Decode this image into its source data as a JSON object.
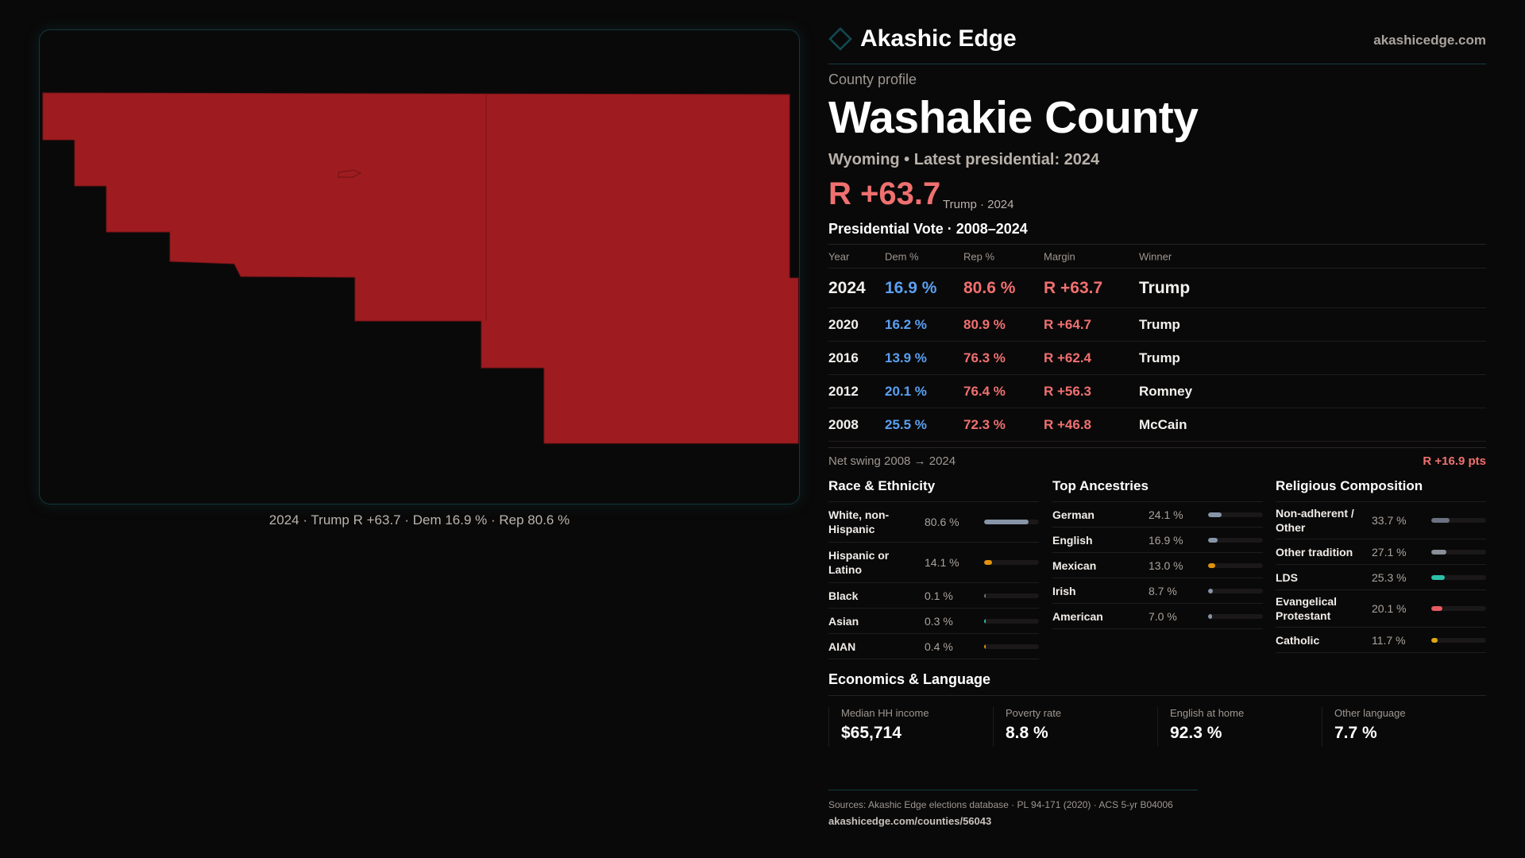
{
  "map": {
    "caption": "2024 · Trump R +63.7 · Dem 16.9 % · Rep 80.6 %",
    "fill_color": "#9e1c20"
  },
  "header": {
    "brand": "Akashic Edge",
    "site": "akashicedge.com"
  },
  "profile": {
    "eyebrow": "County profile",
    "title": "Washakie County",
    "subtitle": "Wyoming • Latest presidential: 2024",
    "margin": "R +63.7",
    "margin_note": "Trump · 2024"
  },
  "vote": {
    "title": "Presidential Vote · 2008–2024",
    "headers": [
      "Year",
      "Dem %",
      "Rep %",
      "Margin",
      "Winner"
    ],
    "rows": [
      {
        "year": "2024",
        "dem": "16.9 %",
        "rep": "80.6 %",
        "margin": "R +63.7",
        "winner": "Trump"
      },
      {
        "year": "2020",
        "dem": "16.2 %",
        "rep": "80.9 %",
        "margin": "R +64.7",
        "winner": "Trump"
      },
      {
        "year": "2016",
        "dem": "13.9 %",
        "rep": "76.3 %",
        "margin": "R +62.4",
        "winner": "Trump"
      },
      {
        "year": "2012",
        "dem": "20.1 %",
        "rep": "76.4 %",
        "margin": "R +56.3",
        "winner": "Romney"
      },
      {
        "year": "2008",
        "dem": "25.5 %",
        "rep": "72.3 %",
        "margin": "R +46.8",
        "winner": "McCain"
      }
    ],
    "swing_label": "Net swing 2008 → 2024",
    "swing_value": "R +16.9 pts"
  },
  "race": {
    "title": "Race & Ethnicity",
    "items": [
      {
        "label": "White, non-Hispanic",
        "value": "80.6 %",
        "pct": 80.6,
        "color": "#8795a8"
      },
      {
        "label": "Hispanic or Latino",
        "value": "14.1 %",
        "pct": 14.1,
        "color": "#e0920e"
      },
      {
        "label": "Black",
        "value": "0.1 %",
        "pct": 0.1,
        "color": "#6b7380"
      },
      {
        "label": "Asian",
        "value": "0.3 %",
        "pct": 0.3,
        "color": "#2cc0a8"
      },
      {
        "label": "AIAN",
        "value": "0.4 %",
        "pct": 0.4,
        "color": "#e0920e"
      }
    ]
  },
  "ancestry": {
    "title": "Top Ancestries",
    "items": [
      {
        "label": "German",
        "value": "24.1 %",
        "pct": 24.1,
        "color": "#8795a8"
      },
      {
        "label": "English",
        "value": "16.9 %",
        "pct": 16.9,
        "color": "#8795a8"
      },
      {
        "label": "Mexican",
        "value": "13.0 %",
        "pct": 13.0,
        "color": "#e0920e"
      },
      {
        "label": "Irish",
        "value": "8.7 %",
        "pct": 8.7,
        "color": "#8795a8"
      },
      {
        "label": "American",
        "value": "7.0 %",
        "pct": 7.0,
        "color": "#8795a8"
      }
    ]
  },
  "religion": {
    "title": "Religious Composition",
    "items": [
      {
        "label": "Non-adherent / Other",
        "value": "33.7 %",
        "pct": 33.7,
        "color": "#6b7180"
      },
      {
        "label": "Other tradition",
        "value": "27.1 %",
        "pct": 27.1,
        "color": "#8a8f99"
      },
      {
        "label": "LDS",
        "value": "25.3 %",
        "pct": 25.3,
        "color": "#2cc0a8"
      },
      {
        "label": "Evangelical Protestant",
        "value": "20.1 %",
        "pct": 20.1,
        "color": "#e85a62"
      },
      {
        "label": "Catholic",
        "value": "11.7 %",
        "pct": 11.7,
        "color": "#e0a810"
      }
    ]
  },
  "econ": {
    "title": "Economics & Language",
    "stats": [
      {
        "label": "Median HH income",
        "value": "$65,714"
      },
      {
        "label": "Poverty rate",
        "value": "8.8 %"
      },
      {
        "label": "English at home",
        "value": "92.3 %"
      },
      {
        "label": "Other language",
        "value": "7.7 %"
      }
    ]
  },
  "footer": {
    "sources": "Sources: Akashic Edge elections database · PL 94-171 (2020) · ACS 5-yr B04006",
    "url": "akashicedge.com/counties/56043"
  }
}
